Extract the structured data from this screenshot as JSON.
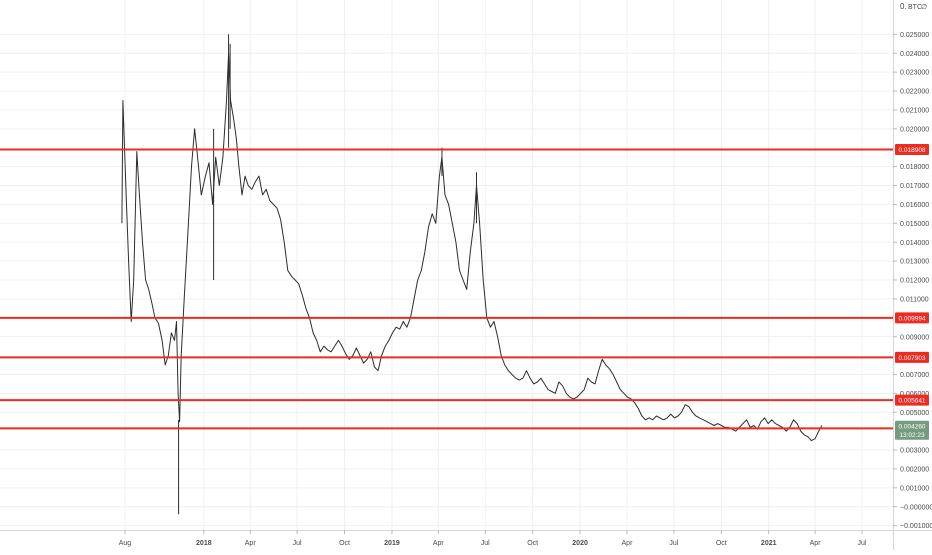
{
  "chart_data": {
    "type": "candlestick",
    "unit_label": "BTC",
    "axis_top_label": "0.",
    "ylim": [
      -0.0011,
      0.0265
    ],
    "y_ticks": [
      {
        "value": 0.025,
        "label": "0.025000"
      },
      {
        "value": 0.024,
        "label": "0.024000"
      },
      {
        "value": 0.023,
        "label": "0.023000"
      },
      {
        "value": 0.022,
        "label": "0.022000"
      },
      {
        "value": 0.021,
        "label": "0.021000"
      },
      {
        "value": 0.02,
        "label": "0.020000"
      },
      {
        "value": 0.018,
        "label": "0.018000"
      },
      {
        "value": 0.017,
        "label": "0.017000"
      },
      {
        "value": 0.016,
        "label": "0.016000"
      },
      {
        "value": 0.015,
        "label": "0.015000"
      },
      {
        "value": 0.014,
        "label": "0.014000"
      },
      {
        "value": 0.013,
        "label": "0.013000"
      },
      {
        "value": 0.012,
        "label": "0.012000"
      },
      {
        "value": 0.011,
        "label": "0.011000"
      },
      {
        "value": 0.009,
        "label": "0.009000"
      },
      {
        "value": 0.007,
        "label": "0.007000"
      },
      {
        "value": 0.006,
        "label": "0.006000"
      },
      {
        "value": 0.005,
        "label": "0.005000"
      },
      {
        "value": 0.003,
        "label": "0.003000"
      },
      {
        "value": 0.002,
        "label": "0.002000"
      },
      {
        "value": 0.001,
        "label": "0.001000"
      },
      {
        "value": 0.0,
        "label": "−0.000000"
      },
      {
        "value": -0.001,
        "label": "−0.001000"
      }
    ],
    "x_ticks": [
      {
        "value": "2017-08",
        "label": "Aug",
        "bold": false
      },
      {
        "value": "2018-01",
        "label": "2018",
        "bold": true
      },
      {
        "value": "2018-04",
        "label": "Apr",
        "bold": false
      },
      {
        "value": "2018-07",
        "label": "Jul",
        "bold": false
      },
      {
        "value": "2018-10",
        "label": "Oct",
        "bold": false
      },
      {
        "value": "2019-01",
        "label": "2019",
        "bold": true
      },
      {
        "value": "2019-04",
        "label": "Apr",
        "bold": false
      },
      {
        "value": "2019-07",
        "label": "Jul",
        "bold": false
      },
      {
        "value": "2019-10",
        "label": "Oct",
        "bold": false
      },
      {
        "value": "2020-01",
        "label": "2020",
        "bold": true
      },
      {
        "value": "2020-04",
        "label": "Apr",
        "bold": false
      },
      {
        "value": "2020-07",
        "label": "Jul",
        "bold": false
      },
      {
        "value": "2020-10",
        "label": "Oct",
        "bold": false
      },
      {
        "value": "2021-01",
        "label": "2021",
        "bold": true
      },
      {
        "value": "2021-04",
        "label": "Apr",
        "bold": false
      },
      {
        "value": "2021-07",
        "label": "Jul",
        "bold": false
      }
    ],
    "series": [
      {
        "points": [
          [
            "2017-07-26",
            0.015
          ],
          [
            "2017-07-28",
            0.0215
          ],
          [
            "2017-07-31",
            0.019
          ],
          [
            "2017-08-04",
            0.016
          ],
          [
            "2017-08-08",
            0.013
          ],
          [
            "2017-08-13",
            0.0098
          ],
          [
            "2017-08-18",
            0.012
          ],
          [
            "2017-08-24",
            0.0188
          ],
          [
            "2017-08-29",
            0.0165
          ],
          [
            "2017-09-04",
            0.014
          ],
          [
            "2017-09-10",
            0.012
          ],
          [
            "2017-09-16",
            0.0115
          ],
          [
            "2017-09-22",
            0.0108
          ],
          [
            "2017-09-28",
            0.01
          ],
          [
            "2017-10-05",
            0.0097
          ],
          [
            "2017-10-12",
            0.0088
          ],
          [
            "2017-10-18",
            0.0075
          ],
          [
            "2017-10-24",
            0.008
          ],
          [
            "2017-10-30",
            0.0092
          ],
          [
            "2017-11-05",
            0.0088
          ],
          [
            "2017-11-09",
            0.0098
          ],
          [
            "2017-11-12",
            0.006
          ],
          [
            "2017-11-15",
            0.0045
          ],
          [
            "2017-11-18",
            0.008
          ],
          [
            "2017-11-24",
            0.011
          ],
          [
            "2017-12-01",
            0.0145
          ],
          [
            "2017-12-08",
            0.018
          ],
          [
            "2017-12-14",
            0.02
          ],
          [
            "2017-12-20",
            0.0185
          ],
          [
            "2017-12-27",
            0.0165
          ],
          [
            "2018-01-04",
            0.0175
          ],
          [
            "2018-01-11",
            0.0182
          ],
          [
            "2018-01-18",
            0.016
          ],
          [
            "2018-01-24",
            0.0185
          ],
          [
            "2018-01-31",
            0.017
          ],
          [
            "2018-02-07",
            0.0185
          ],
          [
            "2018-02-14",
            0.0215
          ],
          [
            "2018-02-18",
            0.024
          ],
          [
            "2018-02-22",
            0.0215
          ],
          [
            "2018-02-28",
            0.0205
          ],
          [
            "2018-03-05",
            0.0195
          ],
          [
            "2018-03-10",
            0.018
          ],
          [
            "2018-03-16",
            0.0165
          ],
          [
            "2018-03-22",
            0.0175
          ],
          [
            "2018-03-28",
            0.017
          ],
          [
            "2018-04-04",
            0.0168
          ],
          [
            "2018-04-11",
            0.0172
          ],
          [
            "2018-04-18",
            0.0175
          ],
          [
            "2018-04-25",
            0.0165
          ],
          [
            "2018-05-02",
            0.0168
          ],
          [
            "2018-05-09",
            0.0162
          ],
          [
            "2018-05-16",
            0.016
          ],
          [
            "2018-05-23",
            0.0158
          ],
          [
            "2018-05-30",
            0.0152
          ],
          [
            "2018-06-06",
            0.014
          ],
          [
            "2018-06-13",
            0.0125
          ],
          [
            "2018-06-20",
            0.0122
          ],
          [
            "2018-06-27",
            0.012
          ],
          [
            "2018-07-04",
            0.0118
          ],
          [
            "2018-07-11",
            0.0112
          ],
          [
            "2018-07-18",
            0.0105
          ],
          [
            "2018-07-25",
            0.01
          ],
          [
            "2018-08-01",
            0.0092
          ],
          [
            "2018-08-08",
            0.0088
          ],
          [
            "2018-08-15",
            0.0082
          ],
          [
            "2018-08-22",
            0.0085
          ],
          [
            "2018-08-29",
            0.0083
          ],
          [
            "2018-09-05",
            0.0082
          ],
          [
            "2018-09-12",
            0.0085
          ],
          [
            "2018-09-19",
            0.0088
          ],
          [
            "2018-09-26",
            0.0085
          ],
          [
            "2018-10-03",
            0.0081
          ],
          [
            "2018-10-10",
            0.0078
          ],
          [
            "2018-10-17",
            0.008
          ],
          [
            "2018-10-24",
            0.0084
          ],
          [
            "2018-10-31",
            0.008
          ],
          [
            "2018-11-07",
            0.0076
          ],
          [
            "2018-11-14",
            0.0078
          ],
          [
            "2018-11-21",
            0.0082
          ],
          [
            "2018-11-28",
            0.0074
          ],
          [
            "2018-12-05",
            0.0072
          ],
          [
            "2018-12-12",
            0.008
          ],
          [
            "2018-12-19",
            0.0085
          ],
          [
            "2018-12-26",
            0.0088
          ],
          [
            "2019-01-02",
            0.0092
          ],
          [
            "2019-01-09",
            0.0095
          ],
          [
            "2019-01-16",
            0.0094
          ],
          [
            "2019-01-23",
            0.0098
          ],
          [
            "2019-01-30",
            0.0095
          ],
          [
            "2019-02-06",
            0.01
          ],
          [
            "2019-02-13",
            0.011
          ],
          [
            "2019-02-20",
            0.012
          ],
          [
            "2019-02-27",
            0.0125
          ],
          [
            "2019-03-06",
            0.0135
          ],
          [
            "2019-03-13",
            0.0148
          ],
          [
            "2019-03-20",
            0.0155
          ],
          [
            "2019-03-27",
            0.015
          ],
          [
            "2019-04-03",
            0.0175
          ],
          [
            "2019-04-08",
            0.0185
          ],
          [
            "2019-04-14",
            0.0165
          ],
          [
            "2019-04-21",
            0.016
          ],
          [
            "2019-04-28",
            0.015
          ],
          [
            "2019-05-05",
            0.014
          ],
          [
            "2019-05-12",
            0.0125
          ],
          [
            "2019-05-19",
            0.012
          ],
          [
            "2019-05-26",
            0.0115
          ],
          [
            "2019-06-02",
            0.0135
          ],
          [
            "2019-06-09",
            0.015
          ],
          [
            "2019-06-14",
            0.017
          ],
          [
            "2019-06-20",
            0.015
          ],
          [
            "2019-06-27",
            0.012
          ],
          [
            "2019-07-04",
            0.01
          ],
          [
            "2019-07-11",
            0.0095
          ],
          [
            "2019-07-18",
            0.0098
          ],
          [
            "2019-07-25",
            0.009
          ],
          [
            "2019-08-01",
            0.008
          ],
          [
            "2019-08-08",
            0.0075
          ],
          [
            "2019-08-15",
            0.0072
          ],
          [
            "2019-08-22",
            0.007
          ],
          [
            "2019-08-29",
            0.0068
          ],
          [
            "2019-09-05",
            0.0067
          ],
          [
            "2019-09-12",
            0.0068
          ],
          [
            "2019-09-19",
            0.0072
          ],
          [
            "2019-09-26",
            0.0068
          ],
          [
            "2019-10-03",
            0.0065
          ],
          [
            "2019-10-10",
            0.0066
          ],
          [
            "2019-10-17",
            0.0068
          ],
          [
            "2019-10-24",
            0.0065
          ],
          [
            "2019-10-31",
            0.0062
          ],
          [
            "2019-11-07",
            0.0061
          ],
          [
            "2019-11-14",
            0.006
          ],
          [
            "2019-11-21",
            0.0066
          ],
          [
            "2019-11-28",
            0.0064
          ],
          [
            "2019-12-05",
            0.006
          ],
          [
            "2019-12-12",
            0.0058
          ],
          [
            "2019-12-19",
            0.0057
          ],
          [
            "2019-12-26",
            0.0058
          ],
          [
            "2020-01-02",
            0.006
          ],
          [
            "2020-01-09",
            0.0062
          ],
          [
            "2020-01-16",
            0.0068
          ],
          [
            "2020-01-23",
            0.0066
          ],
          [
            "2020-01-30",
            0.0065
          ],
          [
            "2020-02-06",
            0.0072
          ],
          [
            "2020-02-13",
            0.0078
          ],
          [
            "2020-02-20",
            0.0075
          ],
          [
            "2020-02-27",
            0.0073
          ],
          [
            "2020-03-05",
            0.007
          ],
          [
            "2020-03-12",
            0.0066
          ],
          [
            "2020-03-19",
            0.0062
          ],
          [
            "2020-03-26",
            0.006
          ],
          [
            "2020-04-02",
            0.0058
          ],
          [
            "2020-04-09",
            0.0057
          ],
          [
            "2020-04-16",
            0.0055
          ],
          [
            "2020-04-23",
            0.0052
          ],
          [
            "2020-04-30",
            0.0048
          ],
          [
            "2020-05-07",
            0.0046
          ],
          [
            "2020-05-14",
            0.0047
          ],
          [
            "2020-05-21",
            0.0046
          ],
          [
            "2020-05-28",
            0.0048
          ],
          [
            "2020-06-04",
            0.0047
          ],
          [
            "2020-06-11",
            0.0046
          ],
          [
            "2020-06-18",
            0.0047
          ],
          [
            "2020-06-25",
            0.0049
          ],
          [
            "2020-07-02",
            0.0047
          ],
          [
            "2020-07-09",
            0.0048
          ],
          [
            "2020-07-16",
            0.005
          ],
          [
            "2020-07-23",
            0.0054
          ],
          [
            "2020-07-30",
            0.0053
          ],
          [
            "2020-08-06",
            0.005
          ],
          [
            "2020-08-13",
            0.0048
          ],
          [
            "2020-08-20",
            0.0047
          ],
          [
            "2020-08-27",
            0.0046
          ],
          [
            "2020-09-03",
            0.0045
          ],
          [
            "2020-09-10",
            0.0044
          ],
          [
            "2020-09-17",
            0.0043
          ],
          [
            "2020-09-24",
            0.0044
          ],
          [
            "2020-10-01",
            0.0043
          ],
          [
            "2020-10-08",
            0.0042
          ],
          [
            "2020-10-15",
            0.0042
          ],
          [
            "2020-10-22",
            0.0041
          ],
          [
            "2020-10-29",
            0.004
          ],
          [
            "2020-11-05",
            0.0042
          ],
          [
            "2020-11-12",
            0.0044
          ],
          [
            "2020-11-19",
            0.0046
          ],
          [
            "2020-11-26",
            0.0042
          ],
          [
            "2020-12-03",
            0.0043
          ],
          [
            "2020-12-10",
            0.0041
          ],
          [
            "2020-12-17",
            0.0045
          ],
          [
            "2020-12-24",
            0.0047
          ],
          [
            "2020-12-31",
            0.0044
          ],
          [
            "2021-01-07",
            0.0046
          ],
          [
            "2021-01-14",
            0.0044
          ],
          [
            "2021-01-21",
            0.0043
          ],
          [
            "2021-01-28",
            0.0042
          ],
          [
            "2021-02-04",
            0.004
          ],
          [
            "2021-02-11",
            0.0042
          ],
          [
            "2021-02-18",
            0.0046
          ],
          [
            "2021-02-25",
            0.0044
          ],
          [
            "2021-03-04",
            0.004
          ],
          [
            "2021-03-11",
            0.0038
          ],
          [
            "2021-03-18",
            0.0037
          ],
          [
            "2021-03-25",
            0.0035
          ],
          [
            "2021-04-01",
            0.0036
          ],
          [
            "2021-04-08",
            0.004
          ],
          [
            "2021-04-14",
            0.0043
          ]
        ]
      }
    ],
    "spikes": [
      {
        "date": "2017-11-13",
        "low": -0.0004,
        "high": 0.0046
      },
      {
        "date": "2018-01-20",
        "low": 0.012,
        "high": 0.02
      },
      {
        "date": "2018-02-18",
        "low": 0.019,
        "high": 0.025
      },
      {
        "date": "2018-02-21",
        "low": 0.02,
        "high": 0.0245
      },
      {
        "date": "2019-04-08",
        "low": 0.0175,
        "high": 0.019
      },
      {
        "date": "2019-06-14",
        "low": 0.015,
        "high": 0.0177
      }
    ],
    "horizontal_lines": [
      {
        "value": 0.018908,
        "label": "0.018908"
      },
      {
        "value": 0.009994,
        "label": "0.009994"
      },
      {
        "value": 0.007903,
        "label": "0.007903"
      },
      {
        "value": 0.005641,
        "label": "0.005641"
      },
      {
        "value": 0.004145,
        "label": "0.004145"
      }
    ],
    "last_price": {
      "value": 0.00426,
      "label": "0.004260",
      "countdown": "13:02:23"
    },
    "grid": true,
    "colors": {
      "line": "#2d2d2d",
      "level": "#ef2b21",
      "last_price_bg": "#759c7f",
      "grid": "#f0f0f0",
      "axis_text": "#4a4a4a"
    }
  }
}
